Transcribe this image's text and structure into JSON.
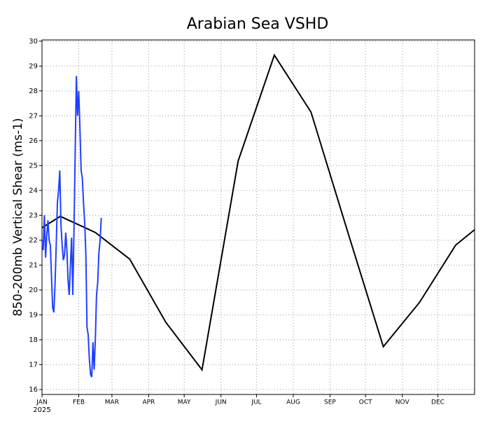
{
  "chart_data": {
    "type": "line",
    "title": "Arabian Sea VSHD",
    "ylabel": "850-200mb Vertical Shear (ms-1)",
    "year_label": "2025",
    "xlim": [
      0,
      365
    ],
    "xticks": [
      {
        "value": 0,
        "label": "JAN"
      },
      {
        "value": 31,
        "label": "FEB"
      },
      {
        "value": 59,
        "label": "MAR"
      },
      {
        "value": 90,
        "label": "APR"
      },
      {
        "value": 120,
        "label": "MAY"
      },
      {
        "value": 151,
        "label": "JUN"
      },
      {
        "value": 181,
        "label": "JUL"
      },
      {
        "value": 212,
        "label": "AUG"
      },
      {
        "value": 243,
        "label": "SEP"
      },
      {
        "value": 273,
        "label": "OCT"
      },
      {
        "value": 304,
        "label": "NOV"
      },
      {
        "value": 334,
        "label": "DEC"
      }
    ],
    "ylim": [
      15.8,
      30.05
    ],
    "yticks": [
      16,
      17,
      18,
      19,
      20,
      21,
      22,
      23,
      24,
      25,
      26,
      27,
      28,
      29,
      30
    ],
    "grid": true,
    "series": [
      {
        "color": "#000000",
        "x": [
          0,
          15.5,
          45,
          74,
          104.5,
          135,
          165.5,
          196,
          227,
          257.5,
          288,
          318.5,
          349,
          365
        ],
        "values": [
          22.5,
          22.96,
          22.31,
          21.24,
          18.7,
          16.79,
          25.18,
          29.44,
          27.15,
          22.4,
          17.72,
          19.5,
          21.8,
          22.42
        ]
      },
      {
        "color": "#2040ff",
        "x": [
          0,
          1,
          2,
          3,
          4,
          5,
          6,
          7,
          8,
          9,
          10,
          11,
          12,
          13,
          14,
          15,
          16,
          17,
          18,
          19,
          20,
          21,
          22,
          23,
          24,
          25,
          26,
          27,
          28,
          29,
          30,
          31,
          32,
          33,
          34,
          35,
          36,
          37,
          38,
          39,
          40,
          41,
          42,
          43,
          44,
          45,
          46,
          47,
          48,
          49,
          50
        ],
        "values": [
          22.0,
          21.6,
          23.0,
          21.3,
          22.2,
          22.8,
          22.0,
          21.8,
          20.6,
          19.3,
          19.1,
          20.2,
          21.8,
          23.5,
          24.0,
          24.8,
          22.6,
          21.8,
          21.2,
          21.4,
          22.3,
          21.6,
          20.4,
          19.8,
          21.0,
          22.1,
          19.8,
          22.4,
          25.5,
          28.6,
          27.0,
          28.0,
          26.5,
          24.8,
          24.5,
          23.5,
          22.7,
          21.5,
          18.5,
          18.2,
          17.2,
          16.6,
          16.5,
          17.9,
          16.8,
          18.0,
          19.8,
          20.3,
          21.5,
          22.0,
          22.9
        ]
      }
    ]
  }
}
